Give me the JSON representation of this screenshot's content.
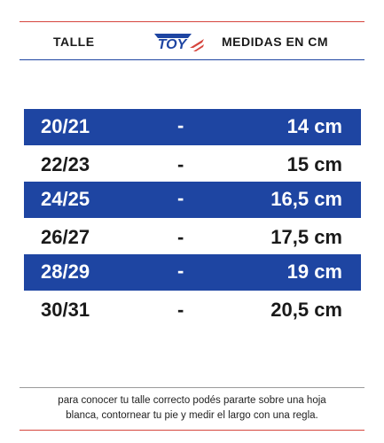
{
  "header": {
    "left_label": "TALLE",
    "right_label": "MEDIDAS EN CM",
    "logo_text": "TOY"
  },
  "rows": [
    {
      "size": "20/21",
      "dash": "-",
      "cm": "14 cm",
      "style": "blue"
    },
    {
      "size": "22/23",
      "dash": "-",
      "cm": "15 cm",
      "style": "white"
    },
    {
      "size": "24/25",
      "dash": "-",
      "cm": "16,5 cm",
      "style": "blue"
    },
    {
      "size": "26/27",
      "dash": "-",
      "cm": "17,5 cm",
      "style": "white"
    },
    {
      "size": "28/29",
      "dash": "-",
      "cm": "19 cm",
      "style": "blue"
    },
    {
      "size": "30/31",
      "dash": "-",
      "cm": "20,5 cm",
      "style": "white"
    }
  ],
  "footer": {
    "line1": "para conocer tu talle correcto podés pararte sobre una hoja",
    "line2": "blanca, contornear tu pie y medir el largo con una regla."
  },
  "colors": {
    "brand_blue": "#1e45a2",
    "accent_red": "#d6453d"
  }
}
